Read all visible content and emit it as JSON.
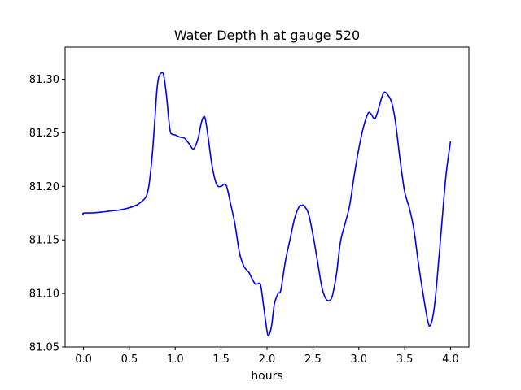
{
  "colors": {
    "background": "#ffffff",
    "axes": "#000000",
    "line": "#0000ff"
  },
  "chart_data": {
    "type": "line",
    "title": "Water Depth h at gauge 520",
    "xlabel": "hours",
    "ylabel": "",
    "xlim": [
      -0.2,
      4.2
    ],
    "ylim": [
      81.05,
      81.33
    ],
    "xticks": [
      0.0,
      0.5,
      1.0,
      1.5,
      2.0,
      2.5,
      3.0,
      3.5,
      4.0
    ],
    "xtick_labels": [
      "0.0",
      "0.5",
      "1.0",
      "1.5",
      "2.0",
      "2.5",
      "3.0",
      "3.5",
      "4.0"
    ],
    "yticks": [
      81.05,
      81.1,
      81.15,
      81.2,
      81.25,
      81.3
    ],
    "ytick_labels": [
      "81.05",
      "81.10",
      "81.15",
      "81.20",
      "81.25",
      "81.30"
    ],
    "grid": false,
    "legend": "none",
    "series": [
      {
        "color": "#0000ff",
        "x": [
          0.0,
          0.0,
          0.1,
          0.2,
          0.3,
          0.4,
          0.5,
          0.55,
          0.6,
          0.65,
          0.68,
          0.7,
          0.72,
          0.75,
          0.78,
          0.8,
          0.82,
          0.85,
          0.87,
          0.89,
          0.91,
          0.93,
          0.95,
          1.0,
          1.05,
          1.1,
          1.15,
          1.2,
          1.25,
          1.28,
          1.31,
          1.33,
          1.36,
          1.4,
          1.45,
          1.5,
          1.53,
          1.56,
          1.6,
          1.65,
          1.7,
          1.75,
          1.8,
          1.83,
          1.87,
          1.9,
          1.93,
          1.96,
          2.0,
          2.02,
          2.05,
          2.08,
          2.12,
          2.15,
          2.2,
          2.25,
          2.3,
          2.35,
          2.38,
          2.4,
          2.45,
          2.5,
          2.55,
          2.6,
          2.65,
          2.7,
          2.73,
          2.76,
          2.8,
          2.85,
          2.9,
          2.95,
          3.0,
          3.05,
          3.1,
          3.13,
          3.17,
          3.2,
          3.25,
          3.28,
          3.32,
          3.36,
          3.4,
          3.45,
          3.5,
          3.55,
          3.6,
          3.65,
          3.7,
          3.75,
          3.78,
          3.82,
          3.85,
          3.9,
          3.95,
          4.0
        ],
        "y": [
          81.173,
          81.175,
          81.1752,
          81.176,
          81.177,
          81.178,
          81.18,
          81.1815,
          81.1835,
          81.187,
          81.19,
          81.195,
          81.205,
          81.23,
          81.265,
          81.29,
          81.302,
          81.306,
          81.305,
          81.295,
          81.28,
          81.262,
          81.25,
          81.248,
          81.246,
          81.245,
          81.24,
          81.235,
          81.245,
          81.258,
          81.265,
          81.262,
          81.245,
          81.22,
          81.202,
          81.2,
          81.202,
          81.2,
          81.185,
          81.165,
          81.138,
          81.125,
          81.12,
          81.115,
          81.109,
          81.109,
          81.108,
          81.09,
          81.065,
          81.061,
          81.07,
          81.09,
          81.1,
          81.103,
          81.13,
          81.15,
          81.17,
          81.181,
          81.182,
          81.182,
          81.175,
          81.155,
          81.13,
          81.105,
          81.094,
          81.095,
          81.105,
          81.12,
          81.148,
          81.165,
          81.182,
          81.21,
          81.235,
          81.255,
          81.268,
          81.268,
          81.263,
          81.268,
          81.283,
          81.288,
          81.285,
          81.278,
          81.26,
          81.225,
          81.195,
          81.18,
          81.16,
          81.128,
          81.1,
          81.075,
          81.07,
          81.085,
          81.11,
          81.16,
          81.21,
          81.242
        ]
      }
    ]
  }
}
